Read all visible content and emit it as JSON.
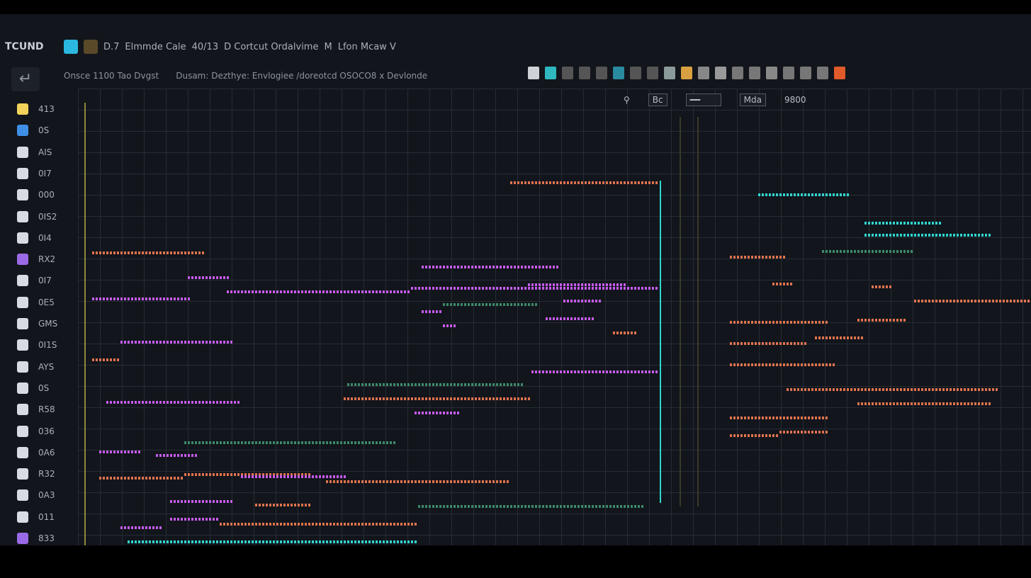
{
  "app": {
    "name": "TCUND"
  },
  "menubar": {
    "items": [
      "D.7",
      "Elmmde Cale",
      "40/13",
      "D Cortcut Ordalvime",
      "M",
      "Lfon Mcaw V"
    ]
  },
  "subbar": {
    "left": "Onsce 1100 Tao Dvgst",
    "right": "Dusam: Dezthye: Envlogiee /doreotcd OSOCO8 x Devlonde"
  },
  "controls": {
    "field1": "Bc",
    "field2": "Mda",
    "value": "9800"
  },
  "sidebar": {
    "items": [
      {
        "label": "413",
        "icon": "folder-icon",
        "color": "#f2d25a"
      },
      {
        "label": "0S",
        "icon": "folder-icon",
        "color": "#3f8fe6"
      },
      {
        "label": "AIS",
        "icon": "chip-icon",
        "color": "#d8dce2"
      },
      {
        "label": "0I7",
        "icon": "file-icon",
        "color": "#d8dce2"
      },
      {
        "label": "000",
        "icon": "circle-icon",
        "color": "#d8dce2"
      },
      {
        "label": "0IS2",
        "icon": "arrow-icon",
        "color": "#d8dce2"
      },
      {
        "label": "0I4",
        "icon": "run-icon",
        "color": "#d8dce2"
      },
      {
        "label": "RX2",
        "icon": "disabled-icon",
        "color": "#9a6ae6"
      },
      {
        "label": "0I7",
        "icon": "square-icon",
        "color": "#d8dce2"
      },
      {
        "label": "0E5",
        "icon": "n-icon",
        "color": "#d8dce2"
      },
      {
        "label": "GMS",
        "icon": "nodes-icon",
        "color": "#d8dce2"
      },
      {
        "label": "0I1S",
        "icon": "lock-icon",
        "color": "#d8dce2"
      },
      {
        "label": "AYS",
        "icon": "grid-icon",
        "color": "#d8dce2"
      },
      {
        "label": "0S",
        "icon": "square-icon",
        "color": "#d8dce2"
      },
      {
        "label": "R58",
        "icon": "layout-icon",
        "color": "#d8dce2"
      },
      {
        "label": "036",
        "icon": "chat-icon",
        "color": "#d8dce2"
      },
      {
        "label": "0A6",
        "icon": "circle-icon",
        "color": "#d8dce2"
      },
      {
        "label": "R32",
        "icon": "r-icon",
        "color": "#d8dce2"
      },
      {
        "label": "0A3",
        "icon": "u-icon",
        "color": "#d8dce2"
      },
      {
        "label": "011",
        "icon": "mail-icon",
        "color": "#d8dce2"
      },
      {
        "label": "833",
        "icon": "dot-icon",
        "color": "#9a6ae6"
      }
    ]
  },
  "colors": {
    "cyan": "#2fd6d0",
    "magenta": "#c65cf0",
    "orange": "#e0734f",
    "olive": "#8c8a3c",
    "green": "#3d8a6a"
  }
}
